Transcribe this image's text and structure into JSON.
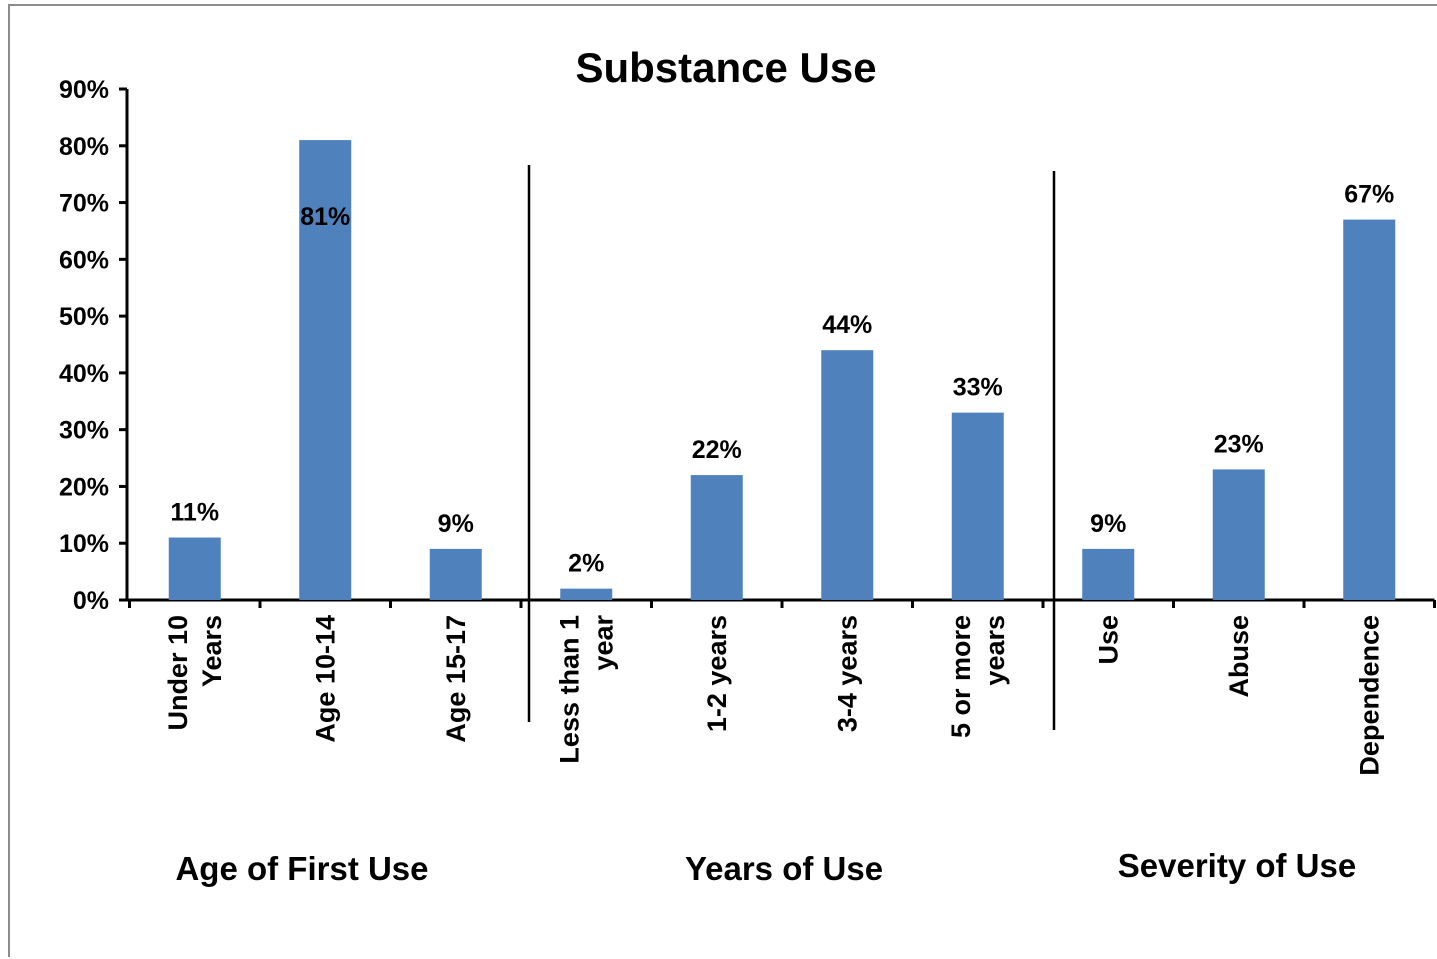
{
  "chart_data": {
    "type": "bar",
    "title": "Substance Use",
    "xlabel": "",
    "ylabel": "",
    "ylim": [
      0,
      90
    ],
    "yticks": [
      "0%",
      "10%",
      "20%",
      "30%",
      "40%",
      "50%",
      "60%",
      "70%",
      "80%",
      "90%"
    ],
    "categories": [
      "Under 10 Years",
      "Age 10-14",
      "Age 15-17",
      "Less than 1 year",
      "1-2 years",
      "3-4 years",
      "5 or more years",
      "Use",
      "Abuse",
      "Dependence"
    ],
    "category_lines": [
      [
        "Under 10",
        "Years"
      ],
      [
        "Age 10-14"
      ],
      [
        "Age 15-17"
      ],
      [
        "Less than 1",
        "year"
      ],
      [
        "1-2 years"
      ],
      [
        "3-4 years"
      ],
      [
        "5 or more",
        "years"
      ],
      [
        "Use"
      ],
      [
        "Abuse"
      ],
      [
        "Dependence"
      ]
    ],
    "values": [
      11,
      81,
      9,
      2,
      22,
      44,
      33,
      9,
      23,
      67
    ],
    "data_labels": [
      "11%",
      "81%",
      "9%",
      "2%",
      "22%",
      "44%",
      "33%",
      "9%",
      "23%",
      "67%"
    ],
    "groups": [
      {
        "label": "Age of First Use",
        "categories": [
          0,
          1,
          2
        ]
      },
      {
        "label": "Years of Use",
        "categories": [
          3,
          4,
          5,
          6
        ]
      },
      {
        "label": "Severity of Use",
        "categories": [
          7,
          8,
          9
        ]
      }
    ],
    "bar_color": "#4f81bd",
    "grid": false,
    "legend": "none"
  }
}
